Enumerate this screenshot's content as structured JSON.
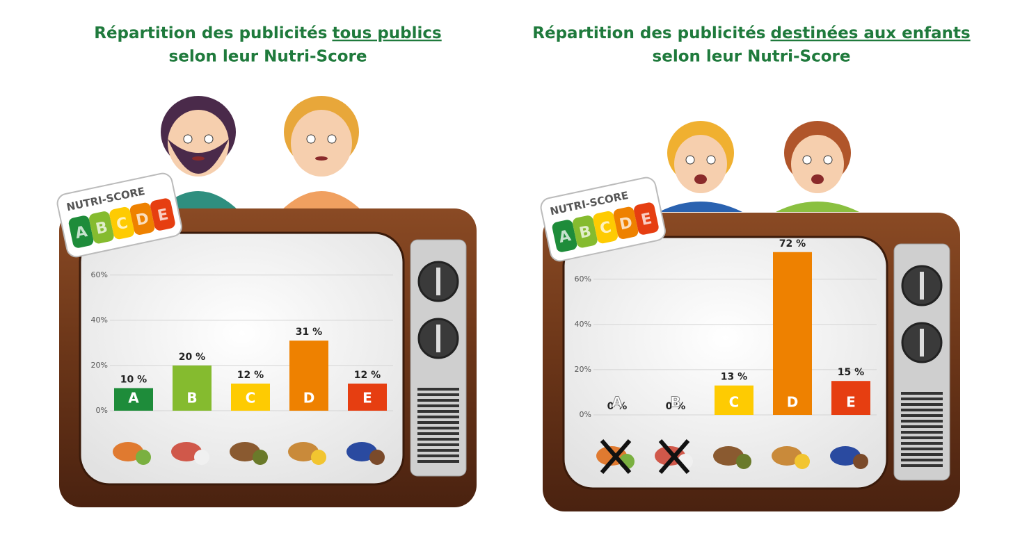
{
  "chart_data": [
    {
      "type": "bar",
      "title": "Répartition des publicités",
      "title_highlight": "tous publics",
      "subtitle": "selon leur Nutri-Score",
      "badge_label": "NUTRI-SCORE",
      "categories": [
        "A",
        "B",
        "C",
        "D",
        "E"
      ],
      "values": [
        10,
        20,
        12,
        31,
        12
      ],
      "value_labels": [
        "10 %",
        "20 %",
        "12 %",
        "31 %",
        "12 %"
      ],
      "colors": [
        "#1e8c3a",
        "#85bb2f",
        "#fecb02",
        "#ee8100",
        "#e63e11"
      ],
      "ylim": [
        0,
        75
      ],
      "yticks": [
        {
          "value": 0,
          "label": "0%"
        },
        {
          "value": 20,
          "label": "20%"
        },
        {
          "value": 40,
          "label": "40%"
        },
        {
          "value": 60,
          "label": "60%"
        }
      ],
      "grid": true
    },
    {
      "type": "bar",
      "title": "Répartition des publicités",
      "title_highlight": "destinées aux enfants",
      "subtitle": "selon leur Nutri-Score",
      "badge_label": "NUTRI-SCORE",
      "categories": [
        "A",
        "B",
        "C",
        "D",
        "E"
      ],
      "values": [
        0,
        0,
        13,
        72,
        15
      ],
      "value_labels": [
        "0 %",
        "0 %",
        "13 %",
        "72 %",
        "15 %"
      ],
      "colors": [
        "#1e8c3a",
        "#85bb2f",
        "#fecb02",
        "#ee8100",
        "#e63e11"
      ],
      "ylim": [
        0,
        75
      ],
      "yticks": [
        {
          "value": 0,
          "label": "0%"
        },
        {
          "value": 20,
          "label": "20%"
        },
        {
          "value": 40,
          "label": "40%"
        },
        {
          "value": 60,
          "label": "60%"
        }
      ],
      "grid": true
    }
  ]
}
